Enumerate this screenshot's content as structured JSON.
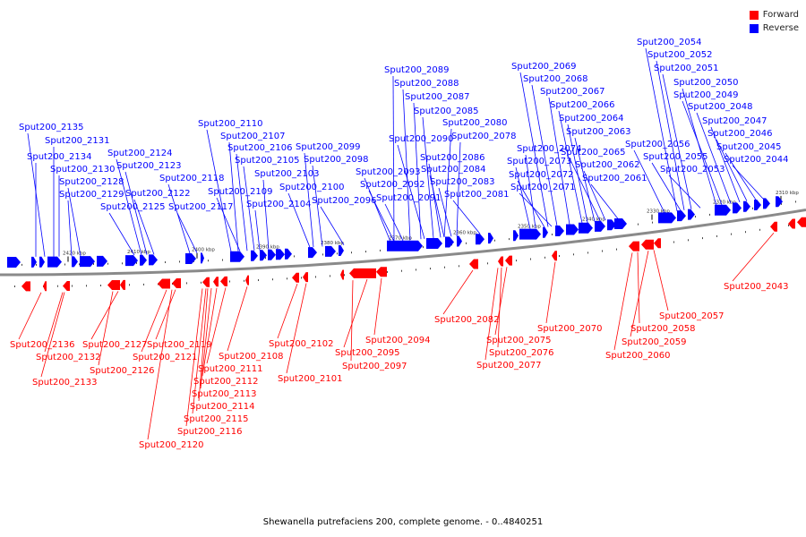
{
  "legend": {
    "forward_label": "Forward",
    "forward_color": "#ff0000",
    "reverse_label": "Reverse",
    "reverse_color": "#0000ff"
  },
  "caption": "Shewanella putrefaciens 200, complete genome. - 0..4840251",
  "ticks": [
    {
      "label": "2420 kbp",
      "pos": 2420
    },
    {
      "label": "2410 kbp",
      "pos": 2410
    },
    {
      "label": "2400 kbp",
      "pos": 2400
    },
    {
      "label": "2390 kbp",
      "pos": 2390
    },
    {
      "label": "2380 kbp",
      "pos": 2380
    },
    {
      "label": "2370 kbp",
      "pos": 2370
    },
    {
      "label": "2360 kbp",
      "pos": 2360
    },
    {
      "label": "2350 kbp",
      "pos": 2350
    },
    {
      "label": "2340 kbp",
      "pos": 2340
    },
    {
      "label": "2330 kbp",
      "pos": 2330
    },
    {
      "label": "2320 kbp",
      "pos": 2320
    },
    {
      "label": "2310 kbp",
      "pos": 2310
    }
  ],
  "reverse_genes": [
    "Sput200_2135",
    "Sput200_2131",
    "Sput200_2134",
    "Sput200_2130",
    "Sput200_2128",
    "Sput200_2129",
    "Sput200_2124",
    "Sput200_2123",
    "Sput200_2122",
    "Sput200_2125",
    "Sput200_2118",
    "Sput200_2117",
    "Sput200_2110",
    "Sput200_2107",
    "Sput200_2106",
    "Sput200_2105",
    "Sput200_2103",
    "Sput200_2109",
    "Sput200_2104",
    "Sput200_2099",
    "Sput200_2098",
    "Sput200_2100",
    "Sput200_2096",
    "Sput200_2089",
    "Sput200_2088",
    "Sput200_2087",
    "Sput200_2085",
    "Sput200_2080",
    "Sput200_2090",
    "Sput200_2078",
    "Sput200_2093",
    "Sput200_2086",
    "Sput200_2084",
    "Sput200_2092",
    "Sput200_2083",
    "Sput200_2091",
    "Sput200_2081",
    "Sput200_2069",
    "Sput200_2068",
    "Sput200_2067",
    "Sput200_2066",
    "Sput200_2064",
    "Sput200_2063",
    "Sput200_2074",
    "Sput200_2073",
    "Sput200_2065",
    "Sput200_2062",
    "Sput200_2072",
    "Sput200_2071",
    "Sput200_2061",
    "Sput200_2054",
    "Sput200_2052",
    "Sput200_2051",
    "Sput200_2050",
    "Sput200_2049",
    "Sput200_2048",
    "Sput200_2047",
    "Sput200_2046",
    "Sput200_2056",
    "Sput200_2045",
    "Sput200_2055",
    "Sput200_2044",
    "Sput200_2053"
  ],
  "forward_genes": [
    "Sput200_2136",
    "Sput200_2132",
    "Sput200_2133",
    "Sput200_2127",
    "Sput200_2126",
    "Sput200_2119",
    "Sput200_2121",
    "Sput200_2111",
    "Sput200_2112",
    "Sput200_2113",
    "Sput200_2114",
    "Sput200_2115",
    "Sput200_2116",
    "Sput200_2120",
    "Sput200_2108",
    "Sput200_2102",
    "Sput200_2101",
    "Sput200_2094",
    "Sput200_2095",
    "Sput200_2097",
    "Sput200_2082",
    "Sput200_2075",
    "Sput200_2076",
    "Sput200_2077",
    "Sput200_2070",
    "Sput200_2057",
    "Sput200_2058",
    "Sput200_2059",
    "Sput200_2060",
    "Sput200_2043"
  ]
}
